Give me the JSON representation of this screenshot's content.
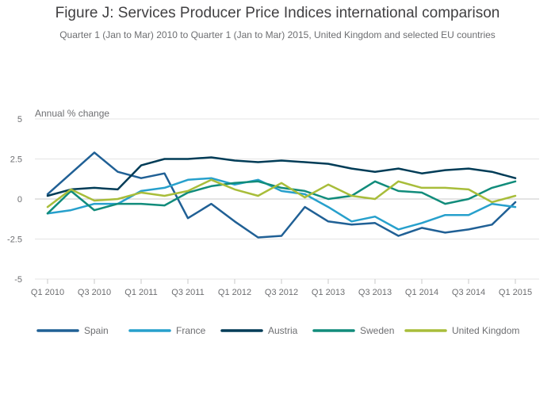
{
  "chart_data": {
    "type": "line",
    "title": "Figure J: Services Producer Price Indices international comparison",
    "subtitle": "Quarter 1 (Jan to Mar) 2010 to Quarter 1 (Jan to Mar) 2015, United Kingdom and selected EU countries",
    "ylabel": "Annual % change",
    "xlabel": "",
    "ylim": [
      -5,
      5
    ],
    "yticks": [
      5,
      2.5,
      0,
      -2.5,
      -5
    ],
    "ytick_labels": [
      "5",
      "2.5",
      "0",
      "-2.5",
      "-5"
    ],
    "x": [
      "Q1 2010",
      "Q2 2010",
      "Q3 2010",
      "Q4 2010",
      "Q1 2011",
      "Q2 2011",
      "Q3 2011",
      "Q4 2011",
      "Q1 2012",
      "Q2 2012",
      "Q3 2012",
      "Q4 2012",
      "Q1 2013",
      "Q2 2013",
      "Q3 2013",
      "Q4 2013",
      "Q1 2014",
      "Q2 2014",
      "Q3 2014",
      "Q4 2014",
      "Q1 2015"
    ],
    "xtick_labels": [
      "Q1 2010",
      "Q3 2010",
      "Q1 2011",
      "Q3 2011",
      "Q1 2012",
      "Q3 2012",
      "Q1 2013",
      "Q3 2013",
      "Q1 2014",
      "Q3 2014",
      "Q1 2015"
    ],
    "grid": "horizontal",
    "legend_position": "bottom",
    "series": [
      {
        "name": "Spain",
        "color": "#206095",
        "values": [
          0.3,
          1.6,
          2.9,
          1.7,
          1.3,
          1.6,
          -1.2,
          -0.3,
          -1.4,
          -2.4,
          -2.3,
          -0.5,
          -1.4,
          -1.6,
          -1.5,
          -2.3,
          -1.8,
          -2.1,
          -1.9,
          -1.6,
          -0.2
        ]
      },
      {
        "name": "France",
        "color": "#27a0cc",
        "values": [
          -0.9,
          -0.7,
          -0.3,
          -0.3,
          0.5,
          0.7,
          1.2,
          1.3,
          0.9,
          1.2,
          0.5,
          0.3,
          -0.5,
          -1.4,
          -1.1,
          -1.9,
          -1.5,
          -1.0,
          -1.0,
          -0.3,
          -0.5
        ]
      },
      {
        "name": "Austria",
        "color": "#003c57",
        "values": [
          0.2,
          0.6,
          0.7,
          0.6,
          2.1,
          2.5,
          2.5,
          2.6,
          2.4,
          2.3,
          2.4,
          2.3,
          2.2,
          1.9,
          1.7,
          1.9,
          1.6,
          1.8,
          1.9,
          1.7,
          1.3
        ]
      },
      {
        "name": "Sweden",
        "color": "#118c7b",
        "values": [
          -0.9,
          0.5,
          -0.7,
          -0.3,
          -0.3,
          -0.4,
          0.4,
          0.8,
          1.0,
          1.1,
          0.7,
          0.5,
          0.0,
          0.2,
          1.1,
          0.5,
          0.4,
          -0.3,
          0.0,
          0.7,
          1.1
        ]
      },
      {
        "name": "United Kingdom",
        "color": "#a8bd3a",
        "values": [
          -0.5,
          0.6,
          -0.1,
          0.0,
          0.4,
          0.2,
          0.5,
          1.2,
          0.6,
          0.2,
          1.0,
          0.1,
          0.9,
          0.2,
          0.0,
          1.1,
          0.7,
          0.7,
          0.6,
          -0.2,
          0.2
        ]
      }
    ]
  }
}
